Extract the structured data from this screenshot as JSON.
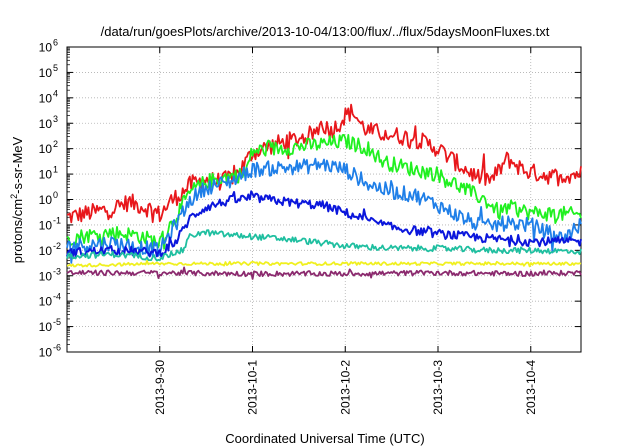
{
  "chart_data": {
    "type": "line",
    "title": "/data/run/goesPlots/archive/2013-10-04/13:00/flux/../flux/5daysMoonFluxes.txt",
    "xlabel": "Coordinated Universal Time (UTC)",
    "ylabel": {
      "base": "protons/cm",
      "sup": "2",
      "rest": "-s-sr-MeV"
    },
    "log_y": true,
    "grid": true,
    "legend": "none",
    "xlim": [
      "2013-09-29T00:00",
      "2013-10-04T13:00"
    ],
    "ylim": [
      1e-06,
      1000000.0
    ],
    "x_ticks": [
      {
        "x": "2013-09-30T00:00",
        "label": "2013-9-30"
      },
      {
        "x": "2013-10-01T00:00",
        "label": "2013-10-1"
      },
      {
        "x": "2013-10-02T00:00",
        "label": "2013-10-2"
      },
      {
        "x": "2013-10-03T00:00",
        "label": "2013-10-3"
      },
      {
        "x": "2013-10-04T00:00",
        "label": "2013-10-4"
      }
    ],
    "y_ticks": [
      {
        "value": 1e-06,
        "base": "10",
        "exp": "-6"
      },
      {
        "value": 1e-05,
        "base": "10",
        "exp": "-5"
      },
      {
        "value": 0.0001,
        "base": "10",
        "exp": "-4"
      },
      {
        "value": 0.001,
        "base": "10",
        "exp": "-3"
      },
      {
        "value": 0.01,
        "base": "10",
        "exp": "-2"
      },
      {
        "value": 0.1,
        "base": "10",
        "exp": "-1"
      },
      {
        "value": 1,
        "base": "10",
        "exp": "0"
      },
      {
        "value": 10,
        "base": "10",
        "exp": "1"
      },
      {
        "value": 100,
        "base": "10",
        "exp": "2"
      },
      {
        "value": 1000,
        "base": "10",
        "exp": "3"
      },
      {
        "value": 10000,
        "base": "10",
        "exp": "4"
      },
      {
        "value": 100000,
        "base": "10",
        "exp": "5"
      },
      {
        "value": 1000000,
        "base": "10",
        "exp": "6"
      }
    ],
    "series": [
      {
        "color": "#e8171b",
        "noise": 0.35,
        "points": [
          [
            "2013-09-29T00:00",
            0.2
          ],
          [
            "2013-09-29T06:00",
            0.3
          ],
          [
            "2013-09-29T12:00",
            0.45
          ],
          [
            "2013-09-29T16:00",
            0.8
          ],
          [
            "2013-09-29T22:00",
            0.4
          ],
          [
            "2013-09-30T00:00",
            0.25
          ],
          [
            "2013-09-30T03:00",
            0.9
          ],
          [
            "2013-09-30T06:00",
            2
          ],
          [
            "2013-09-30T08:00",
            4
          ],
          [
            "2013-09-30T12:00",
            6
          ],
          [
            "2013-09-30T16:00",
            5
          ],
          [
            "2013-09-30T20:00",
            10
          ],
          [
            "2013-10-01T00:00",
            70
          ],
          [
            "2013-10-01T06:00",
            150
          ],
          [
            "2013-10-01T12:00",
            250
          ],
          [
            "2013-10-01T16:00",
            400
          ],
          [
            "2013-10-01T18:00",
            1000
          ],
          [
            "2013-10-01T20:00",
            500
          ],
          [
            "2013-10-01T22:00",
            800
          ],
          [
            "2013-10-02T00:00",
            2000
          ],
          [
            "2013-10-02T02:00",
            3000
          ],
          [
            "2013-10-02T04:00",
            900
          ],
          [
            "2013-10-02T06:00",
            500
          ],
          [
            "2013-10-02T12:00",
            350
          ],
          [
            "2013-10-02T18:00",
            250
          ],
          [
            "2013-10-03T00:00",
            100
          ],
          [
            "2013-10-03T06:00",
            20
          ],
          [
            "2013-10-03T10:00",
            8
          ],
          [
            "2013-10-03T14:00",
            6
          ],
          [
            "2013-10-03T18:00",
            40
          ],
          [
            "2013-10-03T22:00",
            15
          ],
          [
            "2013-10-04T00:00",
            12
          ],
          [
            "2013-10-04T06:00",
            8
          ],
          [
            "2013-10-04T13:00",
            11
          ]
        ]
      },
      {
        "color": "#20f020",
        "noise": 0.3,
        "points": [
          [
            "2013-09-29T00:00",
            0.03
          ],
          [
            "2013-09-29T06:00",
            0.04
          ],
          [
            "2013-09-29T12:00",
            0.05
          ],
          [
            "2013-09-29T18:00",
            0.04
          ],
          [
            "2013-09-30T00:00",
            0.02
          ],
          [
            "2013-09-30T04:00",
            0.2
          ],
          [
            "2013-09-30T08:00",
            2
          ],
          [
            "2013-09-30T12:00",
            5
          ],
          [
            "2013-09-30T18:00",
            8
          ],
          [
            "2013-09-30T22:00",
            10
          ],
          [
            "2013-10-01T00:00",
            80
          ],
          [
            "2013-10-01T06:00",
            100
          ],
          [
            "2013-10-01T12:00",
            120
          ],
          [
            "2013-10-01T18:00",
            150
          ],
          [
            "2013-10-02T00:00",
            200
          ],
          [
            "2013-10-02T06:00",
            100
          ],
          [
            "2013-10-02T10:00",
            30
          ],
          [
            "2013-10-02T18:00",
            15
          ],
          [
            "2013-10-03T00:00",
            10
          ],
          [
            "2013-10-03T06:00",
            3
          ],
          [
            "2013-10-03T12:00",
            1
          ],
          [
            "2013-10-03T16:00",
            0.3
          ],
          [
            "2013-10-03T18:00",
            0.5
          ],
          [
            "2013-10-04T00:00",
            0.3
          ],
          [
            "2013-10-04T13:00",
            0.25
          ]
        ]
      },
      {
        "color": "#1f7fe8",
        "noise": 0.3,
        "points": [
          [
            "2013-09-29T00:00",
            0.015
          ],
          [
            "2013-09-29T12:00",
            0.02
          ],
          [
            "2013-09-30T00:00",
            0.01
          ],
          [
            "2013-09-30T04:00",
            0.1
          ],
          [
            "2013-09-30T08:00",
            1
          ],
          [
            "2013-09-30T12:00",
            3
          ],
          [
            "2013-09-30T18:00",
            5
          ],
          [
            "2013-10-01T00:00",
            15
          ],
          [
            "2013-10-01T08:00",
            18
          ],
          [
            "2013-10-01T14:00",
            20
          ],
          [
            "2013-10-01T18:00",
            25
          ],
          [
            "2013-10-02T00:00",
            15
          ],
          [
            "2013-10-02T06:00",
            4
          ],
          [
            "2013-10-02T12:00",
            2
          ],
          [
            "2013-10-02T18:00",
            1.5
          ],
          [
            "2013-10-03T00:00",
            0.6
          ],
          [
            "2013-10-03T06:00",
            0.2
          ],
          [
            "2013-10-03T12:00",
            0.08
          ],
          [
            "2013-10-03T18:00",
            0.12
          ],
          [
            "2013-10-04T00:00",
            0.1
          ],
          [
            "2013-10-04T08:00",
            0.03
          ],
          [
            "2013-10-04T13:00",
            0.1
          ]
        ]
      },
      {
        "color": "#0b16dc",
        "noise": 0.18,
        "points": [
          [
            "2013-09-29T00:00",
            0.008
          ],
          [
            "2013-09-29T12:00",
            0.01
          ],
          [
            "2013-09-30T00:00",
            0.008
          ],
          [
            "2013-09-30T04:00",
            0.02
          ],
          [
            "2013-09-30T08:00",
            0.2
          ],
          [
            "2013-09-30T12:00",
            0.5
          ],
          [
            "2013-09-30T18:00",
            0.9
          ],
          [
            "2013-10-01T00:00",
            1.2
          ],
          [
            "2013-10-01T12:00",
            0.7
          ],
          [
            "2013-10-01T18:00",
            0.6
          ],
          [
            "2013-10-02T00:00",
            0.3
          ],
          [
            "2013-10-02T06:00",
            0.15
          ],
          [
            "2013-10-02T12:00",
            0.08
          ],
          [
            "2013-10-02T18:00",
            0.06
          ],
          [
            "2013-10-03T00:00",
            0.045
          ],
          [
            "2013-10-03T12:00",
            0.03
          ],
          [
            "2013-10-04T00:00",
            0.022
          ],
          [
            "2013-10-04T13:00",
            0.022
          ]
        ]
      },
      {
        "color": "#1fbfa0",
        "noise": 0.12,
        "points": [
          [
            "2013-09-29T00:00",
            0.006
          ],
          [
            "2013-09-29T12:00",
            0.007
          ],
          [
            "2013-09-30T00:00",
            0.005
          ],
          [
            "2013-09-30T06:00",
            0.01
          ],
          [
            "2013-09-30T08:00",
            0.04
          ],
          [
            "2013-09-30T12:00",
            0.05
          ],
          [
            "2013-09-30T18:00",
            0.04
          ],
          [
            "2013-10-01T00:00",
            0.035
          ],
          [
            "2013-10-01T12:00",
            0.025
          ],
          [
            "2013-10-02T00:00",
            0.015
          ],
          [
            "2013-10-02T12:00",
            0.012
          ],
          [
            "2013-10-03T00:00",
            0.012
          ],
          [
            "2013-10-03T12:00",
            0.01
          ],
          [
            "2013-10-04T00:00",
            0.01
          ],
          [
            "2013-10-04T13:00",
            0.009
          ]
        ]
      },
      {
        "color": "#f0f020",
        "noise": 0.06,
        "points": [
          [
            "2013-09-29T00:00",
            0.0025
          ],
          [
            "2013-09-30T00:00",
            0.003
          ],
          [
            "2013-10-01T00:00",
            0.003
          ],
          [
            "2013-10-02T00:00",
            0.003
          ],
          [
            "2013-10-03T00:00",
            0.003
          ],
          [
            "2013-10-04T00:00",
            0.003
          ],
          [
            "2013-10-04T13:00",
            0.003
          ]
        ]
      },
      {
        "color": "#8b2a6e",
        "noise": 0.1,
        "points": [
          [
            "2013-09-29T00:00",
            0.0013
          ],
          [
            "2013-09-30T00:00",
            0.0013
          ],
          [
            "2013-10-01T00:00",
            0.0012
          ],
          [
            "2013-10-02T00:00",
            0.0012
          ],
          [
            "2013-10-03T00:00",
            0.0013
          ],
          [
            "2013-10-04T00:00",
            0.0012
          ],
          [
            "2013-10-04T13:00",
            0.0013
          ]
        ]
      }
    ]
  }
}
